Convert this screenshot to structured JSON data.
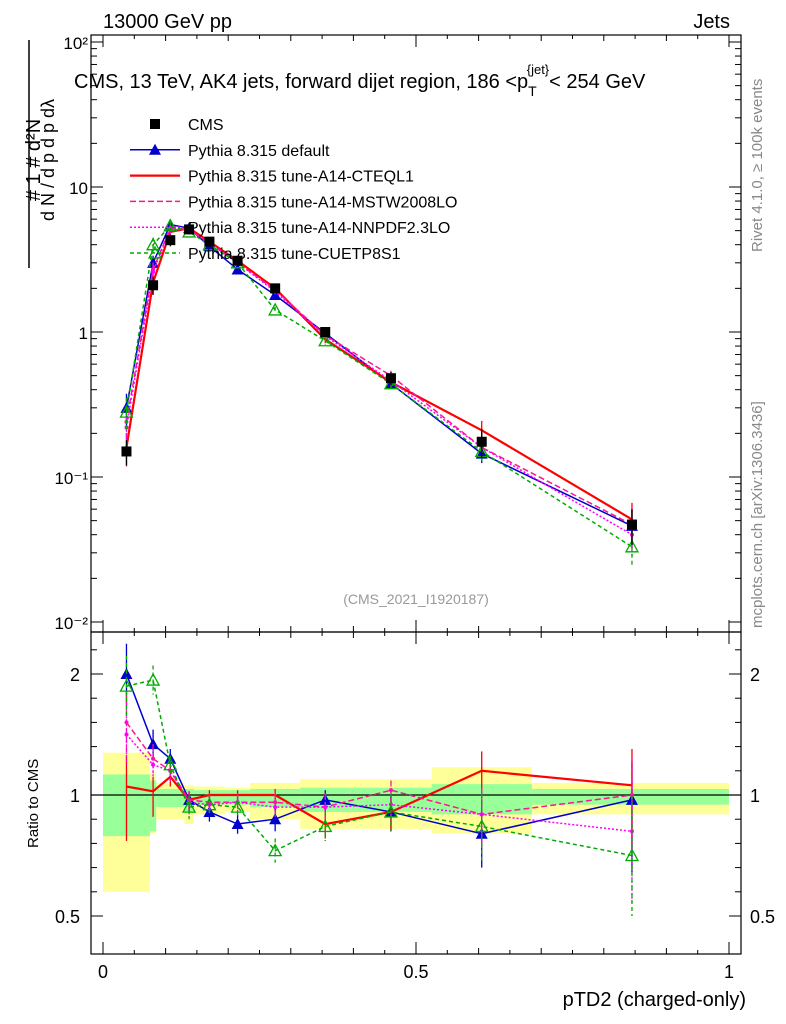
{
  "header": {
    "left": "13000 GeV pp",
    "right": "Jets"
  },
  "side_labels": {
    "rivet": "Rivet 4.1.0, ≥ 100k events",
    "mcplots": "mcplots.cern.ch [arXiv:1306.3436]"
  },
  "chart_data": {
    "type": "line",
    "title": "CMS, 13 TeV, AK4 jets, forward dijet region, 186 <p_T^{jet}< 254 GeV",
    "title_parts": {
      "main": "CMS, 13 TeV, AK4 jets, forward dijet region, 186 <p",
      "sub": "T",
      "sup": "{jet}",
      "tail": "< 254 GeV"
    },
    "analysis_id": "(CMS_2021_I1920187)",
    "xlabel": "pTD2 (charged-only)",
    "ylabel_main": "1/N dN/dpTD2",
    "ylabel_ratio": "Ratio to CMS",
    "xlim": [
      0,
      1
    ],
    "ylim": [
      0.01,
      100
    ],
    "ratio_ylim": [
      0.4,
      2.35
    ],
    "x_ticks": [
      "0",
      "0.5",
      "1"
    ],
    "y_ticks": [
      "10⁻²",
      "10⁻¹",
      "1",
      "10",
      "10²"
    ],
    "ratio_ticks": [
      "0.5",
      "1",
      "2"
    ],
    "x": [
      0.0375,
      0.08,
      0.1075,
      0.1375,
      0.17,
      0.215,
      0.275,
      0.355,
      0.46,
      0.605,
      0.845
    ],
    "bin_edges": [
      0,
      0.075,
      0.085,
      0.13,
      0.145,
      0.195,
      0.235,
      0.315,
      0.395,
      0.525,
      0.685,
      1.0
    ],
    "data": {
      "name": "CMS",
      "values": [
        0.15,
        2.1,
        4.3,
        5.1,
        4.2,
        3.1,
        2.0,
        1.0,
        0.48,
        0.175,
        0.047
      ],
      "err": [
        0.03,
        0.3,
        0.4,
        0.4,
        0.3,
        0.2,
        0.12,
        0.07,
        0.05,
        0.04,
        0.013
      ],
      "band_inner": [
        [
          0.83,
          1.17
        ],
        [
          0.85,
          1.12
        ],
        [
          0.95,
          1.05
        ],
        [
          0.93,
          1.05
        ],
        [
          0.96,
          1.04
        ],
        [
          0.96,
          1.04
        ],
        [
          0.95,
          1.05
        ],
        [
          0.93,
          1.06
        ],
        [
          0.93,
          1.06
        ],
        [
          0.92,
          1.09
        ],
        [
          0.96,
          1.05
        ]
      ],
      "band_outer": [
        [
          0.6,
          1.35
        ],
        [
          0.84,
          1.18
        ],
        [
          0.9,
          1.1
        ],
        [
          0.88,
          1.08
        ],
        [
          0.92,
          1.07
        ],
        [
          0.93,
          1.06
        ],
        [
          0.9,
          1.1
        ],
        [
          0.86,
          1.13
        ],
        [
          0.86,
          1.13
        ],
        [
          0.84,
          1.23
        ],
        [
          0.92,
          1.1
        ]
      ]
    },
    "series": [
      {
        "name": "Pythia 8.315 default",
        "color": "#0000cc",
        "dash": "",
        "marker": "triangle-filled",
        "values": [
          0.3,
          3.0,
          5.5,
          5.2,
          3.9,
          2.7,
          1.8,
          0.98,
          0.44,
          0.145,
          0.046
        ],
        "ratio": [
          2.0,
          1.42,
          1.3,
          0.98,
          0.93,
          0.88,
          0.9,
          0.98,
          0.93,
          0.84,
          0.98
        ],
        "ratio_err": [
          0.25,
          0.12,
          0.08,
          0.05,
          0.04,
          0.04,
          0.05,
          0.06,
          0.08,
          0.14,
          0.3
        ]
      },
      {
        "name": "Pythia 8.315 tune-A14-CTEQL1",
        "color": "#ff0000",
        "dash": "",
        "marker": "none",
        "values": [
          0.16,
          2.2,
          4.9,
          5.2,
          4.2,
          3.1,
          2.0,
          0.89,
          0.45,
          0.21,
          0.051
        ],
        "ratio": [
          1.07,
          1.03,
          1.15,
          0.98,
          1.0,
          1.0,
          1.0,
          0.88,
          0.93,
          1.2,
          1.08
        ],
        "ratio_err": [
          0.26,
          0.12,
          0.08,
          0.05,
          0.04,
          0.04,
          0.05,
          0.06,
          0.08,
          0.16,
          0.3
        ]
      },
      {
        "name": "Pythia 8.315 tune-A14-MSTW2008LO",
        "color": "#ff1493",
        "dash": "6,3",
        "marker": "dot",
        "values": [
          0.24,
          2.7,
          5.2,
          5.1,
          4.1,
          3.0,
          1.95,
          0.95,
          0.5,
          0.16,
          0.047
        ],
        "ratio": [
          1.6,
          1.3,
          1.2,
          0.98,
          0.97,
          0.97,
          0.97,
          0.95,
          1.04,
          0.92,
          1.0
        ],
        "ratio_err": [
          0.25,
          0.12,
          0.08,
          0.05,
          0.04,
          0.04,
          0.05,
          0.06,
          0.08,
          0.14,
          0.3
        ]
      },
      {
        "name": "Pythia 8.315 tune-A14-NNPDF2.3LO",
        "color": "#ff00ff",
        "dash": "2,2",
        "marker": "dot",
        "values": [
          0.22,
          2.6,
          5.1,
          5.1,
          4.1,
          3.0,
          1.9,
          0.94,
          0.46,
          0.16,
          0.04
        ],
        "ratio": [
          1.5,
          1.25,
          1.2,
          0.97,
          0.96,
          0.97,
          0.95,
          0.95,
          0.96,
          0.92,
          0.85
        ],
        "ratio_err": [
          0.25,
          0.12,
          0.08,
          0.05,
          0.04,
          0.04,
          0.05,
          0.06,
          0.08,
          0.14,
          0.3
        ]
      },
      {
        "name": "Pythia 8.315 tune-CUETP8S1",
        "color": "#00aa00",
        "dash": "4,3",
        "marker": "triangle-open",
        "values": [
          0.28,
          4.0,
          5.4,
          4.9,
          4.0,
          3.0,
          1.42,
          0.87,
          0.44,
          0.15,
          0.033
        ],
        "ratio": [
          1.9,
          1.95,
          1.25,
          0.95,
          0.96,
          0.95,
          0.77,
          0.87,
          0.93,
          0.87,
          0.75
        ],
        "ratio_err": [
          0.25,
          0.12,
          0.08,
          0.05,
          0.04,
          0.04,
          0.05,
          0.06,
          0.08,
          0.14,
          0.25
        ]
      }
    ]
  }
}
